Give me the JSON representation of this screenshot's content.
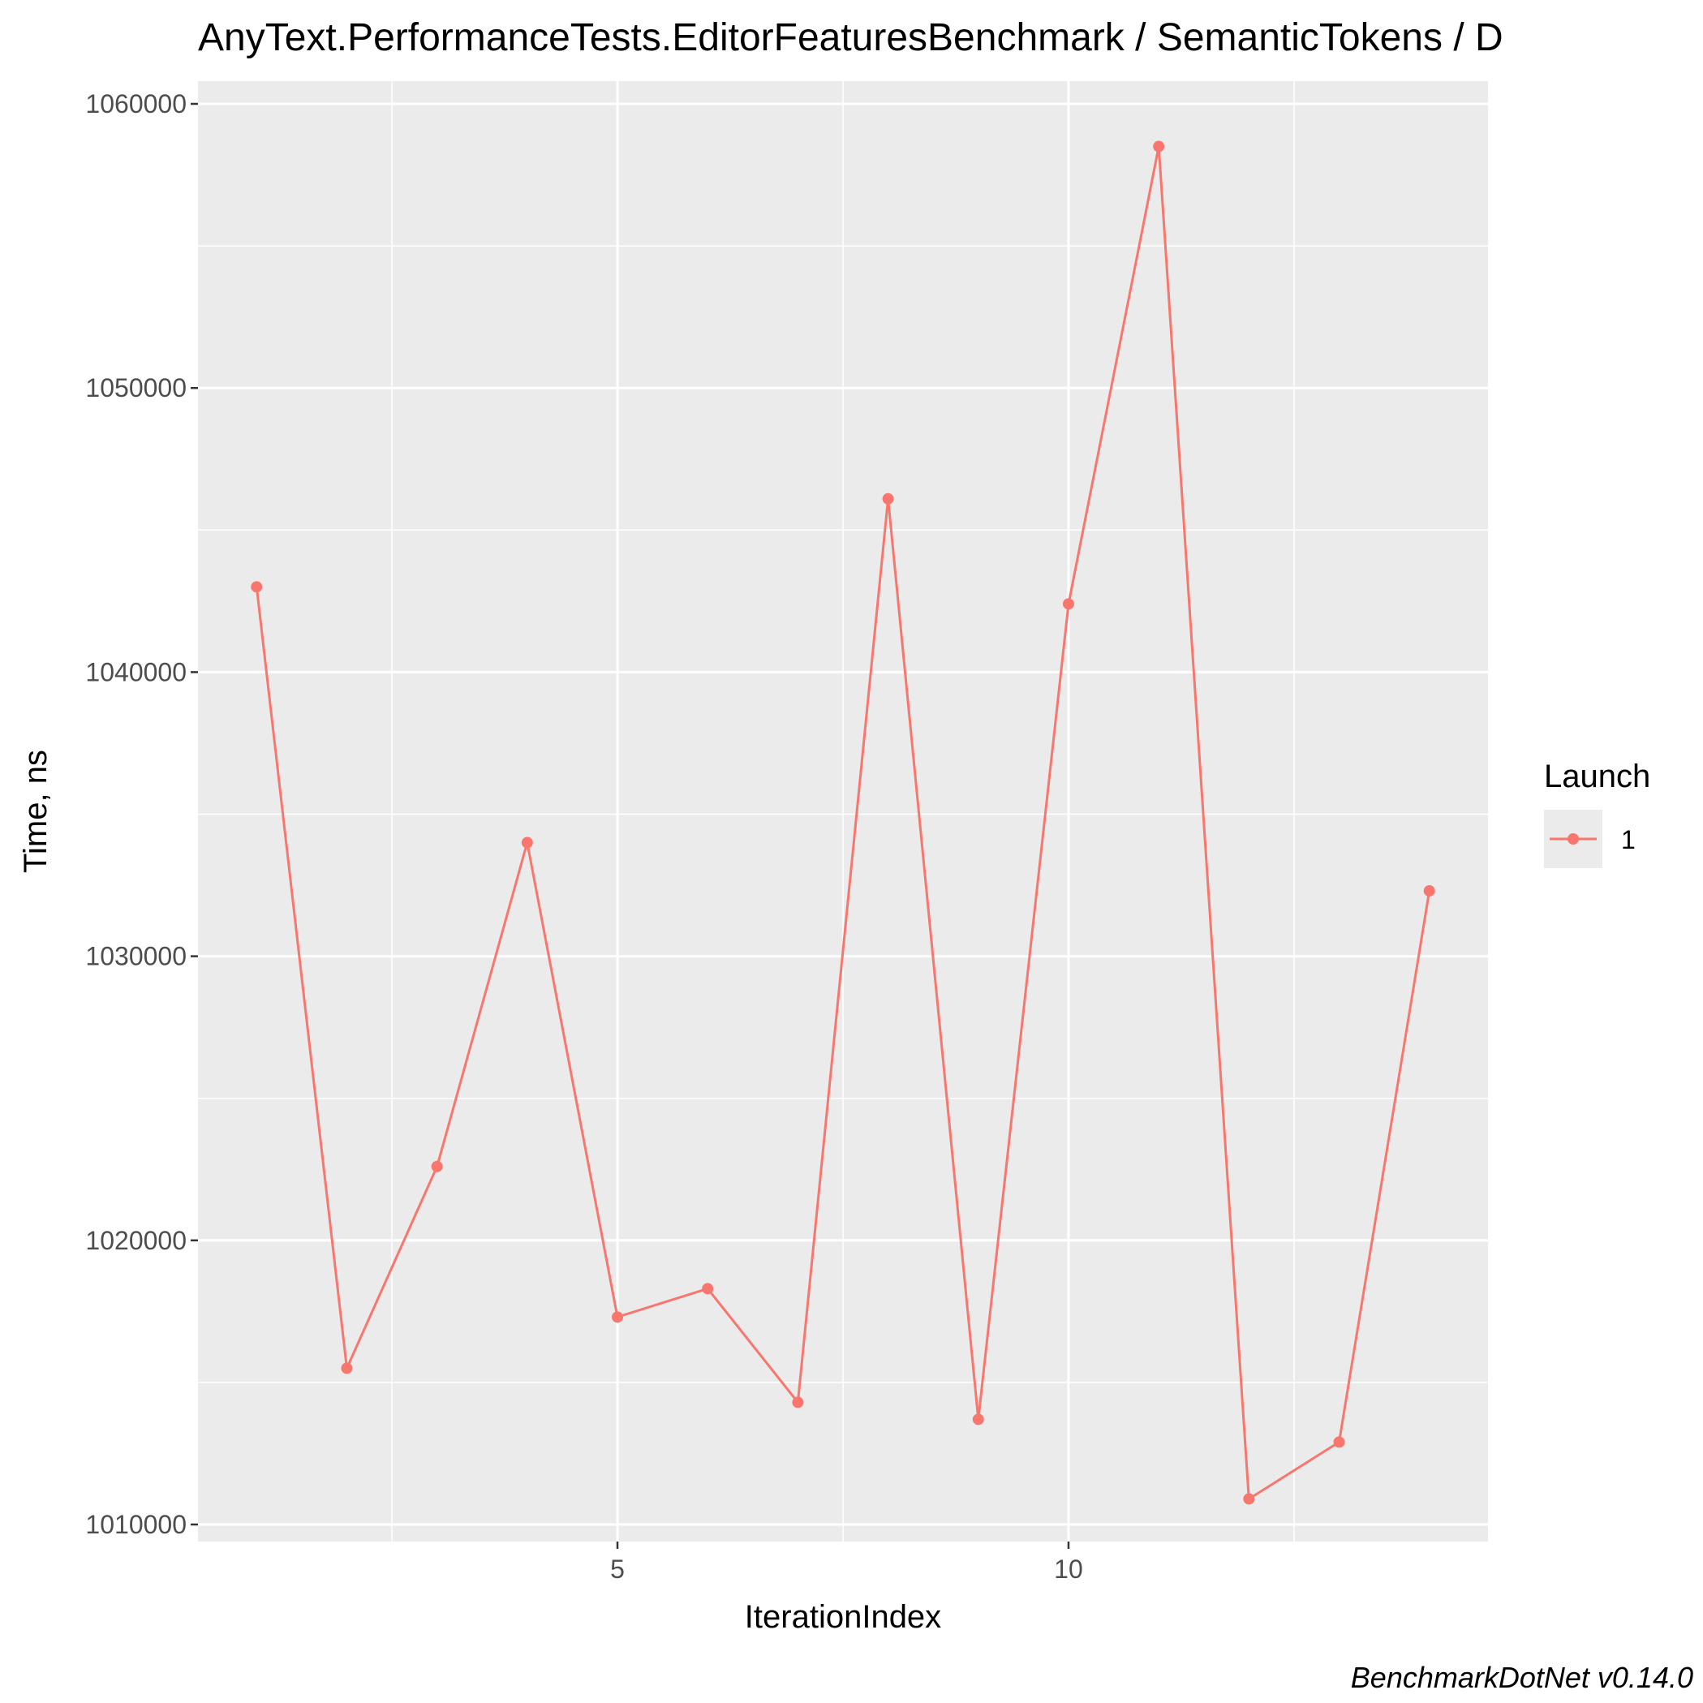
{
  "chart_data": {
    "type": "line",
    "title": "AnyText.PerformanceTests.EditorFeaturesBenchmark / SemanticTokens / D",
    "xlabel": "IterationIndex",
    "ylabel": "Time, ns",
    "caption": "BenchmarkDotNet v0.14.0",
    "xlim": [
      0.35,
      14.65
    ],
    "ylim": [
      1009400,
      1060800
    ],
    "x_ticks": [
      5,
      10
    ],
    "x_tick_labels": [
      "5",
      "10"
    ],
    "y_ticks": [
      1010000,
      1020000,
      1030000,
      1040000,
      1050000,
      1060000
    ],
    "y_tick_labels": [
      "1010000",
      "1020000",
      "1030000",
      "1040000",
      "1050000",
      "1060000"
    ],
    "grid": true,
    "legend": {
      "title": "Launch",
      "position": "right"
    },
    "series": [
      {
        "name": "1",
        "color": "#f8766d",
        "x": [
          1,
          2,
          3,
          4,
          5,
          6,
          7,
          8,
          9,
          10,
          11,
          12,
          13,
          14
        ],
        "y": [
          1043000,
          1015500,
          1022600,
          1034000,
          1017300,
          1018300,
          1014300,
          1046100,
          1013700,
          1042400,
          1058500,
          1010900,
          1012900,
          1032300
        ]
      }
    ]
  }
}
